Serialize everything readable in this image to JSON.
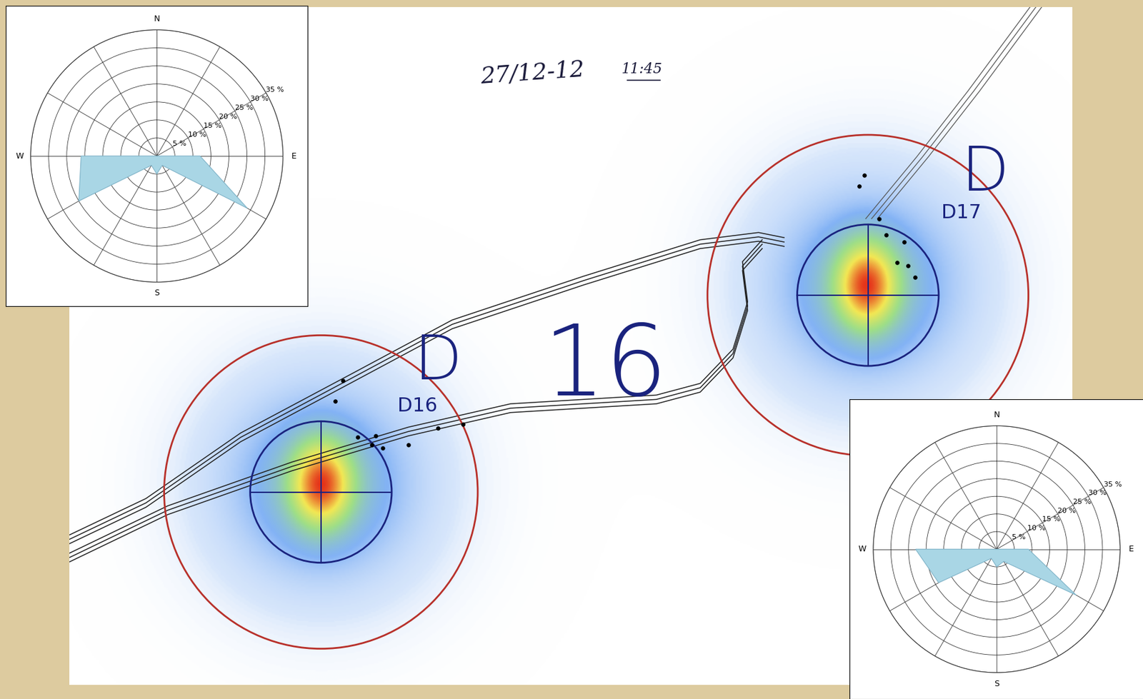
{
  "map": {
    "date": "27/12-12",
    "time": "11:45",
    "holes": [
      {
        "name": "D16",
        "flag": "D"
      },
      {
        "name": "D17",
        "flag": "D"
      }
    ],
    "big_label": {
      "letter": "D",
      "number": "16"
    }
  },
  "chart_data": [
    {
      "type": "radar",
      "categories": [
        "N",
        null,
        null,
        "E",
        null,
        null,
        "S",
        null,
        null,
        "W",
        null,
        null
      ],
      "values": [
        0,
        0,
        0,
        12,
        29,
        3,
        5,
        3,
        25,
        21,
        0,
        0
      ],
      "color": "#a9d6e5",
      "ylim": [
        0,
        35
      ],
      "yticks": [
        {
          "value": 5,
          "label": "5 %"
        },
        {
          "value": 10,
          "label": "10 %"
        },
        {
          "value": 15,
          "label": "15 %"
        },
        {
          "value": 20,
          "label": "20 %"
        },
        {
          "value": 25,
          "label": "25 %"
        },
        {
          "value": 30,
          "label": "30 %"
        },
        {
          "value": 35,
          "label": "35 %"
        }
      ],
      "grid": true
    },
    {
      "type": "radar",
      "categories": [
        "N",
        null,
        null,
        "E",
        null,
        null,
        "S",
        null,
        null,
        "W",
        null,
        null
      ],
      "values": [
        0,
        0,
        0,
        9,
        26,
        4,
        5,
        3,
        19,
        23,
        0,
        0
      ],
      "color": "#a9d6e5",
      "ylim": [
        0,
        35
      ],
      "yticks": [
        {
          "value": 5,
          "label": "5 %"
        },
        {
          "value": 10,
          "label": "10 %"
        },
        {
          "value": 15,
          "label": "15 %"
        },
        {
          "value": 20,
          "label": "20 %"
        },
        {
          "value": 25,
          "label": "25 %"
        },
        {
          "value": 30,
          "label": "30 %"
        },
        {
          "value": 35,
          "label": "35 %"
        }
      ],
      "grid": true
    }
  ]
}
